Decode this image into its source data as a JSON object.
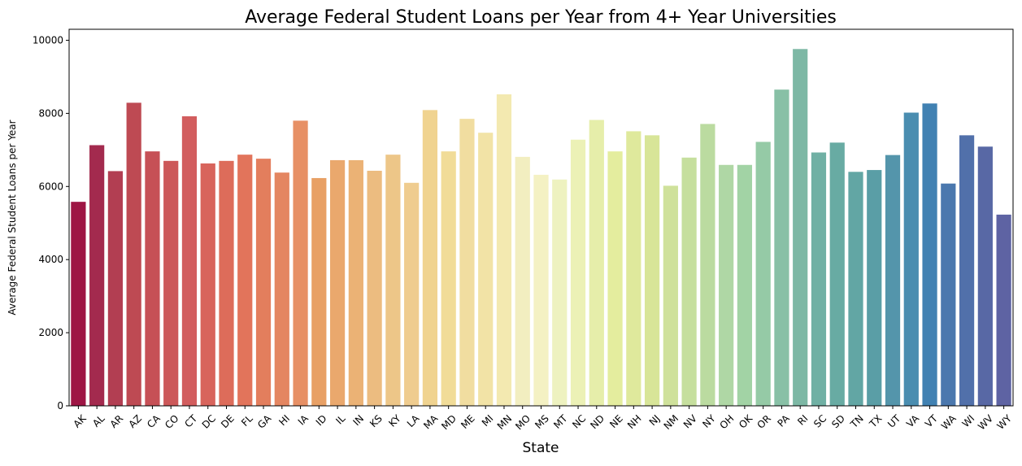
{
  "chart_data": {
    "type": "bar",
    "title": "Average Federal Student Loans per Year from 4+ Year Universities",
    "xlabel": "State",
    "ylabel": "Average Federal Student Loans per Year",
    "ylim": [
      0,
      10300
    ],
    "yticks": [
      0,
      2000,
      4000,
      6000,
      8000,
      10000
    ],
    "grid": false,
    "categories": [
      "AK",
      "AL",
      "AR",
      "AZ",
      "CA",
      "CO",
      "CT",
      "DC",
      "DE",
      "FL",
      "GA",
      "HI",
      "IA",
      "ID",
      "IL",
      "IN",
      "KS",
      "KY",
      "LA",
      "MA",
      "MD",
      "ME",
      "MI",
      "MN",
      "MO",
      "MS",
      "MT",
      "NC",
      "ND",
      "NE",
      "NH",
      "NJ",
      "NM",
      "NV",
      "NY",
      "OH",
      "OK",
      "OR",
      "PA",
      "RI",
      "SC",
      "SD",
      "TN",
      "TX",
      "UT",
      "VA",
      "VT",
      "WA",
      "WI",
      "WV",
      "WY"
    ],
    "values": [
      5580,
      7130,
      6420,
      8290,
      6960,
      6700,
      7920,
      6630,
      6700,
      6870,
      6760,
      6380,
      7800,
      6230,
      6720,
      6720,
      6430,
      6870,
      6100,
      8090,
      6960,
      7850,
      7470,
      8520,
      6810,
      6320,
      6190,
      7280,
      7820,
      6960,
      7510,
      7400,
      6020,
      6790,
      7710,
      6590,
      6590,
      7220,
      8650,
      9760,
      6930,
      7200,
      6400,
      6450,
      6860,
      8020,
      8270,
      6080,
      7400,
      7090,
      5230
    ],
    "colors": [
      "#9e1544",
      "#a32a4e",
      "#b23e52",
      "#be4a53",
      "#c65056",
      "#cc5859",
      "#d25d5e",
      "#d8645c",
      "#dd6c5a",
      "#e2745b",
      "#e37e5d",
      "#e48661",
      "#e79065",
      "#e8a065",
      "#eaa86d",
      "#ebb275",
      "#ecbc80",
      "#edc688",
      "#efcc8f",
      "#f0d390",
      "#f1dc98",
      "#f1dda0",
      "#f2e3a6",
      "#f3e9b0",
      "#f2eec0",
      "#f4f1c3",
      "#eef2c0",
      "#ecf1b6",
      "#e6eeaa",
      "#e4ed9e",
      "#dfe99c",
      "#d8e598",
      "#cfe19b",
      "#c6df9e",
      "#bbdba0",
      "#afd7a5",
      "#a2d3a5",
      "#95caa6",
      "#88c0a6",
      "#7db8a5",
      "#70b0a4",
      "#68aba3",
      "#62a6a4",
      "#5a9ea6",
      "#5495ab",
      "#4a8db0",
      "#4181b2",
      "#4b78ae",
      "#5170aa",
      "#5868a5",
      "#5e63a3"
    ]
  }
}
